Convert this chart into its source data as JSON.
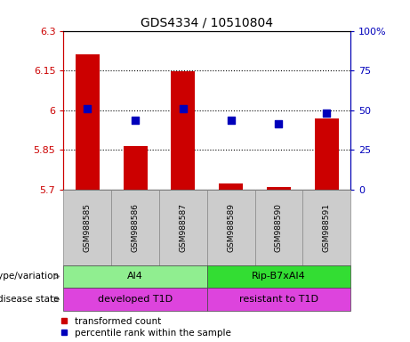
{
  "title": "GDS4334 / 10510804",
  "samples": [
    "GSM988585",
    "GSM988586",
    "GSM988587",
    "GSM988589",
    "GSM988590",
    "GSM988591"
  ],
  "red_values": [
    6.21,
    5.865,
    6.148,
    5.725,
    5.712,
    5.97
  ],
  "blue_values": [
    51.0,
    43.5,
    51.0,
    44.0,
    41.5,
    48.0
  ],
  "ylim_left": [
    5.7,
    6.3
  ],
  "ylim_right": [
    0,
    100
  ],
  "yticks_left": [
    5.7,
    5.85,
    6.0,
    6.15,
    6.3
  ],
  "yticks_right": [
    0,
    25,
    50,
    75,
    100
  ],
  "ytick_labels_left": [
    "5.7",
    "5.85",
    "6",
    "6.15",
    "6.3"
  ],
  "ytick_labels_right": [
    "0",
    "25",
    "50",
    "75",
    "100%"
  ],
  "hlines": [
    5.85,
    6.0,
    6.15
  ],
  "bar_width": 0.5,
  "bar_color": "#cc0000",
  "dot_color": "#0000bb",
  "dot_size": 35,
  "genotype_labels": [
    {
      "label": "Al4",
      "start": 0,
      "end": 2
    },
    {
      "label": "Rip-B7xAl4",
      "start": 3,
      "end": 5
    }
  ],
  "genotype_colors": [
    "#90ee90",
    "#33dd33"
  ],
  "disease_labels": [
    {
      "label": "developed T1D",
      "start": 0,
      "end": 2
    },
    {
      "label": "resistant to T1D",
      "start": 3,
      "end": 5
    }
  ],
  "disease_color": "#dd44dd",
  "genotype_row_label": "genotype/variation",
  "disease_row_label": "disease state",
  "legend_red": "transformed count",
  "legend_blue": "percentile rank within the sample",
  "tick_color_left": "#cc0000",
  "tick_color_right": "#0000bb",
  "background_color": "#ffffff",
  "plot_bg": "#ffffff",
  "sample_box_color": "#cccccc"
}
